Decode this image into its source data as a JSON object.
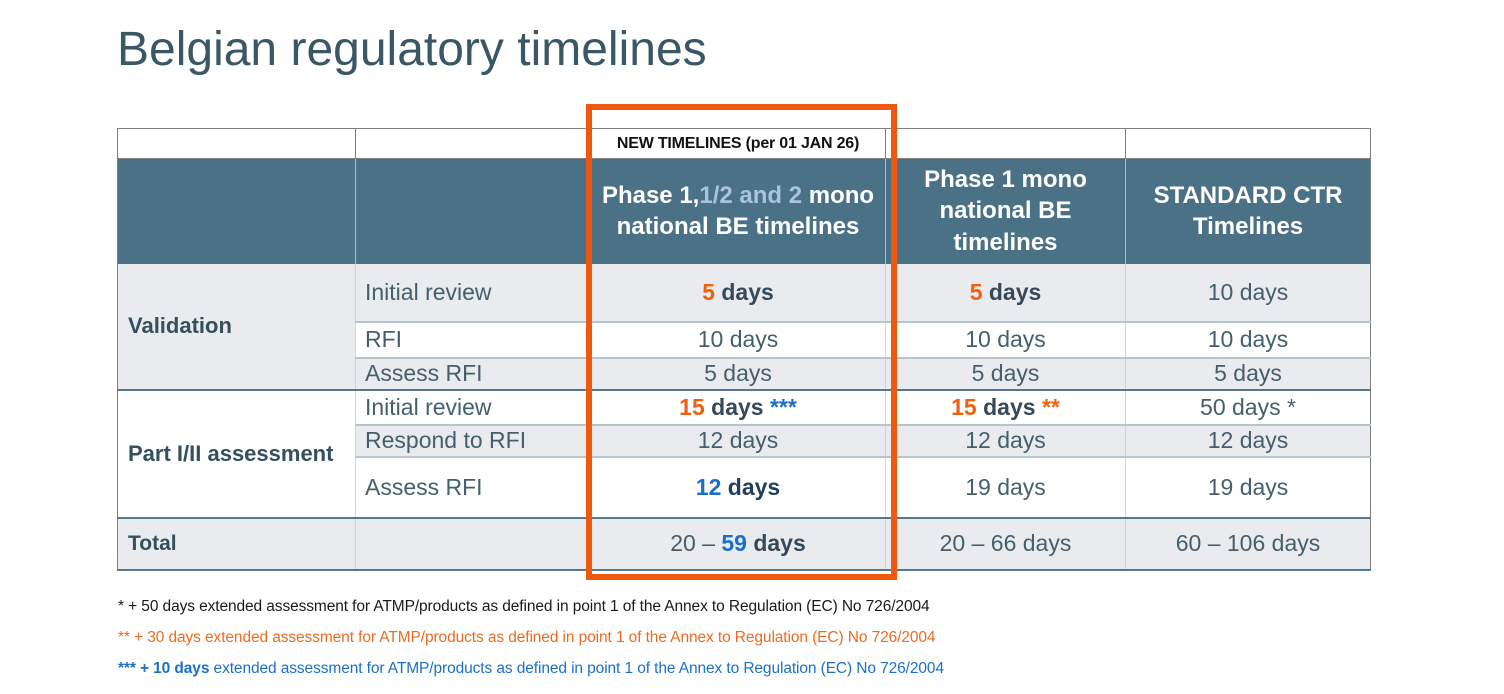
{
  "palette": {
    "title_color": "#3a5765",
    "header_bg": "#4a7186",
    "row_alt": "#e9ebef",
    "outer_gray": "#7f7f7f",
    "grid_light": "#ccd6dc",
    "grid_mid": "#b7c5ce",
    "grid_dark": "#54788e",
    "text_regular": "#45606d",
    "text_dark": "#33505e",
    "highlight": "#f0570f",
    "orange": "#f0600e",
    "blue": "#1b6ec6",
    "dark": "#35495a",
    "navy": "#1f3e5e",
    "white": "#ffffff",
    "light_blue": "#a9c5de",
    "fn_black": "#1a1a1a",
    "fn_orange": "#ed6b20",
    "fn_blue": "#1c70c9"
  },
  "title": "Belgian regulatory timelines",
  "table": {
    "banner": "NEW TIMELINES (per 01 JAN 26)",
    "headers": [
      {
        "segs": [
          {
            "t": "Phase 1,",
            "color": "white",
            "bold": true
          },
          {
            "t": "1/2 and 2",
            "color": "light_blue",
            "bold": true
          },
          {
            "t": " mono national BE timelines",
            "color": "white",
            "bold": true
          }
        ]
      },
      {
        "text": "Phase 1 mono national BE timelines"
      },
      {
        "text": "STANDARD CTR Timelines"
      }
    ],
    "groups": [
      {
        "label": "Validation",
        "rows": [
          {
            "sub": "Initial review",
            "cells": [
              {
                "segs": [
                  {
                    "t": "5",
                    "color": "orange",
                    "bold": true
                  },
                  {
                    "t": " days",
                    "color": "dark",
                    "bold": true
                  }
                ]
              },
              {
                "segs": [
                  {
                    "t": "5",
                    "color": "orange",
                    "bold": true
                  },
                  {
                    "t": " days",
                    "color": "dark",
                    "bold": true
                  }
                ]
              },
              {
                "segs": [
                  {
                    "t": "10 days"
                  }
                ]
              }
            ]
          },
          {
            "sub": "RFI",
            "cells": [
              {
                "segs": [
                  {
                    "t": "10 days"
                  }
                ]
              },
              {
                "segs": [
                  {
                    "t": "10 days"
                  }
                ]
              },
              {
                "segs": [
                  {
                    "t": "10 days"
                  }
                ]
              }
            ]
          },
          {
            "sub": "Assess RFI",
            "cells": [
              {
                "segs": [
                  {
                    "t": "5 days"
                  }
                ]
              },
              {
                "segs": [
                  {
                    "t": "5 days"
                  }
                ]
              },
              {
                "segs": [
                  {
                    "t": "5 days"
                  }
                ]
              }
            ]
          }
        ]
      },
      {
        "label": "Part I/II assessment",
        "rows": [
          {
            "sub": "Initial review",
            "cells": [
              {
                "segs": [
                  {
                    "t": "15",
                    "color": "orange",
                    "bold": true
                  },
                  {
                    "t": " days ",
                    "color": "dark",
                    "bold": true
                  },
                  {
                    "t": "***",
                    "color": "blue",
                    "bold": true
                  }
                ]
              },
              {
                "segs": [
                  {
                    "t": "15",
                    "color": "orange",
                    "bold": true
                  },
                  {
                    "t": " days ",
                    "color": "dark",
                    "bold": true
                  },
                  {
                    "t": "**",
                    "color": "orange",
                    "bold": true
                  }
                ]
              },
              {
                "segs": [
                  {
                    "t": "50 days *"
                  }
                ]
              }
            ]
          },
          {
            "sub": "Respond to RFI",
            "cells": [
              {
                "segs": [
                  {
                    "t": "12 days"
                  }
                ]
              },
              {
                "segs": [
                  {
                    "t": "12 days"
                  }
                ]
              },
              {
                "segs": [
                  {
                    "t": "12 days"
                  }
                ]
              }
            ]
          },
          {
            "sub": "Assess RFI",
            "cells": [
              {
                "segs": [
                  {
                    "t": "12",
                    "color": "blue",
                    "bold": true
                  },
                  {
                    "t": " days",
                    "color": "navy",
                    "bold": true
                  }
                ]
              },
              {
                "segs": [
                  {
                    "t": "19 days"
                  }
                ]
              },
              {
                "segs": [
                  {
                    "t": "19 days"
                  }
                ]
              }
            ]
          }
        ]
      }
    ],
    "total": {
      "label": "Total",
      "cells": [
        {
          "segs": [
            {
              "t": "20 – "
            },
            {
              "t": "59",
              "color": "blue",
              "bold": true
            },
            {
              "t": " days",
              "color": "dark",
              "bold": true
            }
          ]
        },
        {
          "segs": [
            {
              "t": "20 – 66 days"
            }
          ]
        },
        {
          "segs": [
            {
              "t": "60 – 106 days"
            }
          ]
        }
      ]
    }
  },
  "footnotes": [
    {
      "segs": [
        {
          "t": "* + 50 days extended assessment for ATMP/products as defined in point 1 of the Annex to Regulation (EC) No 726/2004",
          "color": "fn_black"
        }
      ]
    },
    {
      "segs": [
        {
          "t": "** + 30 days extended assessment for ATMP/products as defined in point 1 of the Annex to Regulation (EC) No 726/2004",
          "color": "fn_orange"
        }
      ]
    },
    {
      "segs": [
        {
          "t": "*** + 10 days",
          "color": "fn_blue",
          "bold": true
        },
        {
          "t": " extended assessment for ATMP/products as defined in point 1 of the Annex to Regulation (EC) No 726/2004",
          "color": "fn_blue"
        }
      ]
    }
  ]
}
